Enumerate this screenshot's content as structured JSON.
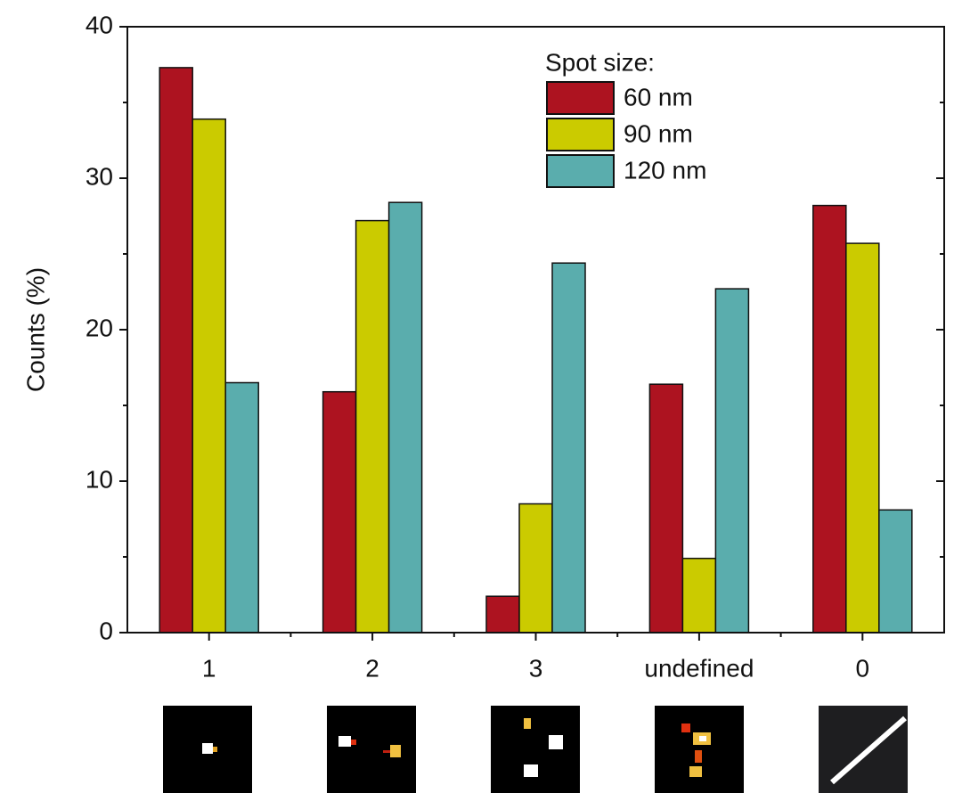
{
  "chart_data": {
    "type": "bar",
    "y_label": "Counts (%)",
    "legend_title": "Spot size:",
    "categories": [
      "1",
      "2",
      "3",
      "undefined",
      "0"
    ],
    "series": [
      {
        "name": "60 nm",
        "color": "#ad1320",
        "values": [
          37.3,
          15.9,
          2.4,
          16.4,
          28.2
        ]
      },
      {
        "name": "90 nm",
        "color": "#cbcb00",
        "values": [
          33.9,
          27.2,
          8.5,
          4.9,
          25.7
        ]
      },
      {
        "name": "120 nm",
        "color": "#5aadad",
        "values": [
          16.5,
          28.4,
          24.4,
          22.7,
          8.1
        ]
      }
    ],
    "ylim": [
      0,
      40
    ],
    "yticks": [
      0,
      10,
      20,
      30,
      40
    ],
    "minor_yticks": [
      5,
      15,
      25,
      35
    ],
    "grid": false,
    "legend_position": "top-right"
  }
}
